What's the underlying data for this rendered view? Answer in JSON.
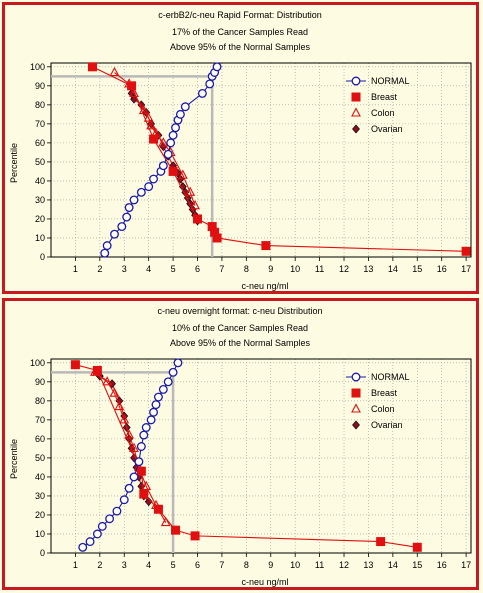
{
  "charts": [
    {
      "id": "top",
      "title_lines": [
        "c-erbB2/c-neu Rapid Format: Distribution",
        "17% of the Cancer Samples Read",
        "Above 95% of the Normal Samples"
      ],
      "xlabel": "c-neu ng/ml",
      "ylabel": "Percentile",
      "legend": [
        "NORMAL",
        "Breast",
        "Colon",
        "Ovarian"
      ]
    },
    {
      "id": "bottom",
      "title_lines": [
        "c-neu overnight format: c-neu Distribution",
        "10% of the Cancer Samples Read",
        "Above 95% of the Normal Samples"
      ],
      "xlabel": "c-neu ng/ml",
      "ylabel": "Percentile",
      "legend": [
        "NORMAL",
        "Breast",
        "Colon",
        "Ovarian"
      ]
    }
  ],
  "colors": {
    "normal": "#1a1aa6",
    "cancer": "#e01010",
    "ovarian": "#8b1020",
    "frame": "#c8191e",
    "background": "#fdfbe1",
    "cutoff": "#b9b9b9"
  },
  "chart_data": [
    {
      "type": "line",
      "title": "c-erbB2/c-neu Rapid Format: Distribution",
      "xlabel": "c-neu ng/ml",
      "ylabel": "Percentile",
      "xlim": [
        0,
        17.2
      ],
      "ylim": [
        0,
        102
      ],
      "xticks": [
        1,
        2,
        3,
        4,
        5,
        6,
        7,
        8,
        9,
        10,
        11,
        12,
        13,
        14,
        15,
        16,
        17
      ],
      "yticks": [
        0,
        10,
        20,
        30,
        40,
        50,
        60,
        70,
        80,
        90,
        100
      ],
      "grid": true,
      "legend_position": "top-right",
      "cutoff": {
        "x": 6.6,
        "y": 95
      },
      "series": [
        {
          "name": "NORMAL",
          "marker": "open-circle",
          "x": [
            2.2,
            2.3,
            2.6,
            2.9,
            3.1,
            3.2,
            3.4,
            3.7,
            4.0,
            4.2,
            4.5,
            4.6,
            4.8,
            4.9,
            5.0,
            5.1,
            5.2,
            5.3,
            5.5,
            6.2,
            6.5,
            6.6,
            6.7,
            6.8
          ],
          "y": [
            2,
            6,
            12,
            16,
            21,
            26,
            30,
            34,
            37,
            41,
            45,
            48,
            54,
            60,
            64,
            68,
            72,
            75,
            79,
            86,
            91,
            95,
            97,
            100
          ]
        },
        {
          "name": "Breast",
          "marker": "filled-square",
          "x": [
            1.7,
            3.3,
            4.2,
            5.0,
            6.0,
            6.6,
            6.7,
            6.8,
            8.8,
            17.0
          ],
          "y": [
            100,
            90,
            62,
            45,
            20,
            16,
            13,
            10,
            6,
            3
          ]
        },
        {
          "name": "Colon",
          "marker": "open-triangle",
          "x": [
            2.6,
            3.2,
            3.4,
            3.8,
            4.0,
            4.1,
            4.3,
            4.6,
            4.9,
            5.4,
            5.7,
            5.9
          ],
          "y": [
            97,
            91,
            86,
            77,
            73,
            69,
            65,
            60,
            55,
            43,
            34,
            27
          ]
        },
        {
          "name": "Ovarian",
          "marker": "filled-diamond",
          "x": [
            3.3,
            3.4,
            3.7,
            3.9,
            4.1,
            4.4,
            4.6,
            4.8,
            5.0,
            5.2,
            5.3,
            5.4,
            5.5,
            5.6,
            5.7,
            5.8,
            5.9,
            6.0
          ],
          "y": [
            86,
            83,
            80,
            76,
            70,
            64,
            58,
            53,
            48,
            44,
            41,
            37,
            34,
            31,
            28,
            25,
            22,
            19
          ]
        }
      ]
    },
    {
      "type": "line",
      "title": "c-neu overnight format: c-neu Distribution",
      "xlabel": "c-neu ng/ml",
      "ylabel": "Percentile",
      "xlim": [
        0,
        17.2
      ],
      "ylim": [
        0,
        102
      ],
      "xticks": [
        1,
        2,
        3,
        4,
        5,
        6,
        7,
        8,
        9,
        10,
        11,
        12,
        13,
        14,
        15,
        16,
        17
      ],
      "yticks": [
        0,
        10,
        20,
        30,
        40,
        50,
        60,
        70,
        80,
        90,
        100
      ],
      "grid": true,
      "legend_position": "top-right",
      "cutoff": {
        "x": 5.0,
        "y": 95
      },
      "series": [
        {
          "name": "NORMAL",
          "marker": "open-circle",
          "x": [
            1.3,
            1.6,
            1.9,
            2.1,
            2.4,
            2.7,
            3.0,
            3.2,
            3.4,
            3.6,
            3.7,
            3.8,
            3.9,
            4.1,
            4.2,
            4.3,
            4.4,
            4.6,
            4.8,
            5.0,
            5.2
          ],
          "y": [
            3,
            6,
            10,
            14,
            18,
            22,
            28,
            34,
            40,
            48,
            56,
            62,
            66,
            70,
            74,
            78,
            82,
            86,
            90,
            95,
            100
          ]
        },
        {
          "name": "Breast",
          "marker": "filled-square",
          "x": [
            1.0,
            1.9,
            3.7,
            3.8,
            4.4,
            5.1,
            5.9,
            13.5,
            15.0
          ],
          "y": [
            99,
            96,
            43,
            31,
            23,
            12,
            9,
            6,
            3
          ]
        },
        {
          "name": "Colon",
          "marker": "open-triangle",
          "x": [
            1.8,
            2.3,
            2.6,
            2.8,
            3.0,
            3.2,
            3.4,
            3.6,
            3.9,
            4.3,
            4.7
          ],
          "y": [
            95,
            90,
            84,
            77,
            70,
            62,
            55,
            45,
            35,
            25,
            16
          ]
        },
        {
          "name": "Ovarian",
          "marker": "filled-diamond",
          "x": [
            2.0,
            2.5,
            2.8,
            3.0,
            3.1,
            3.2,
            3.3,
            3.4,
            3.5,
            3.6,
            3.7,
            3.8,
            4.0
          ],
          "y": [
            93,
            89,
            80,
            72,
            66,
            60,
            55,
            50,
            45,
            40,
            35,
            30,
            27
          ]
        }
      ]
    }
  ]
}
